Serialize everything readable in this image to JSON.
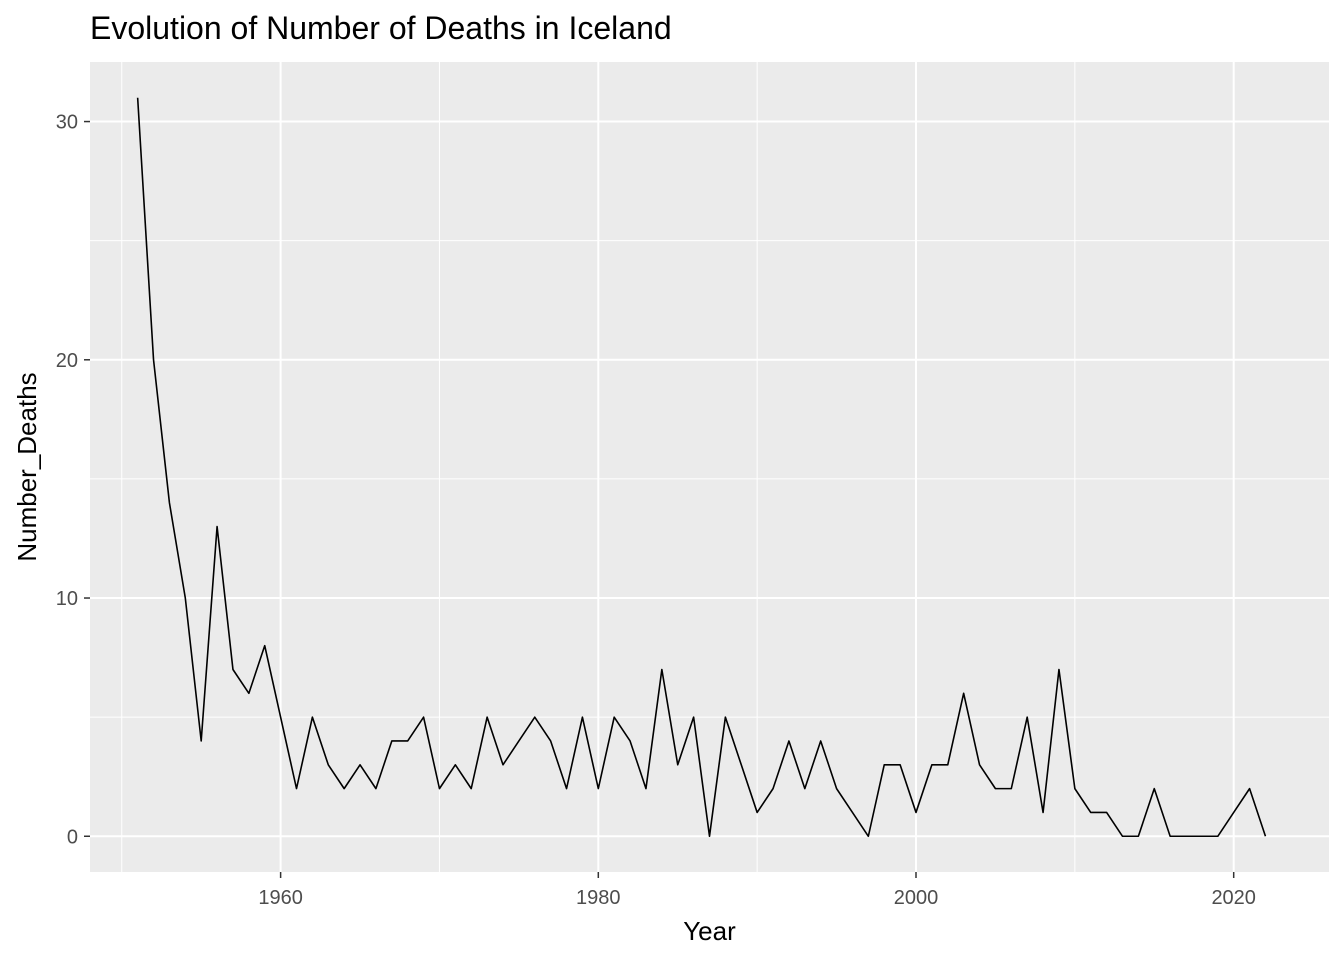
{
  "chart_data": {
    "type": "line",
    "title": "Evolution of Number of Deaths in Iceland",
    "xlabel": "Year",
    "ylabel": "Number_Deaths",
    "xlim": [
      1948,
      2026
    ],
    "ylim": [
      -1.5,
      32.5
    ],
    "x_ticks": [
      1960,
      1980,
      2000,
      2020
    ],
    "y_ticks": [
      0,
      10,
      20,
      30
    ],
    "grid": true,
    "legend": "none",
    "colors": {
      "panel": "#ebebeb",
      "grid": "#ffffff",
      "line": "#000000",
      "tick_text": "#4d4d4d"
    },
    "series": [
      {
        "x": [
          1951,
          1952,
          1953,
          1954,
          1955,
          1956,
          1957,
          1958,
          1959,
          1960,
          1961,
          1962,
          1963,
          1964,
          1965,
          1966,
          1967,
          1968,
          1969,
          1970,
          1971,
          1972,
          1973,
          1974,
          1975,
          1976,
          1977,
          1978,
          1979,
          1980,
          1981,
          1982,
          1983,
          1984,
          1985,
          1986,
          1987,
          1988,
          1989,
          1990,
          1991,
          1992,
          1993,
          1994,
          1995,
          1996,
          1997,
          1998,
          1999,
          2000,
          2001,
          2002,
          2003,
          2004,
          2005,
          2006,
          2007,
          2008,
          2009,
          2010,
          2011,
          2012,
          2013,
          2014,
          2015,
          2016,
          2017,
          2018,
          2019,
          2020,
          2021,
          2022
        ],
        "values": [
          31,
          20,
          14,
          10,
          4,
          13,
          7,
          6,
          8,
          5,
          2,
          5,
          3,
          2,
          3,
          2,
          4,
          4,
          5,
          2,
          3,
          2,
          5,
          3,
          4,
          5,
          4,
          2,
          5,
          2,
          5,
          4,
          2,
          7,
          3,
          5,
          0,
          5,
          3,
          1,
          2,
          4,
          2,
          4,
          2,
          1,
          0,
          3,
          3,
          1,
          3,
          3,
          6,
          3,
          2,
          2,
          5,
          1,
          7,
          2,
          1,
          1,
          0,
          0,
          2,
          0,
          0,
          0,
          0,
          1,
          2,
          0
        ]
      }
    ]
  }
}
